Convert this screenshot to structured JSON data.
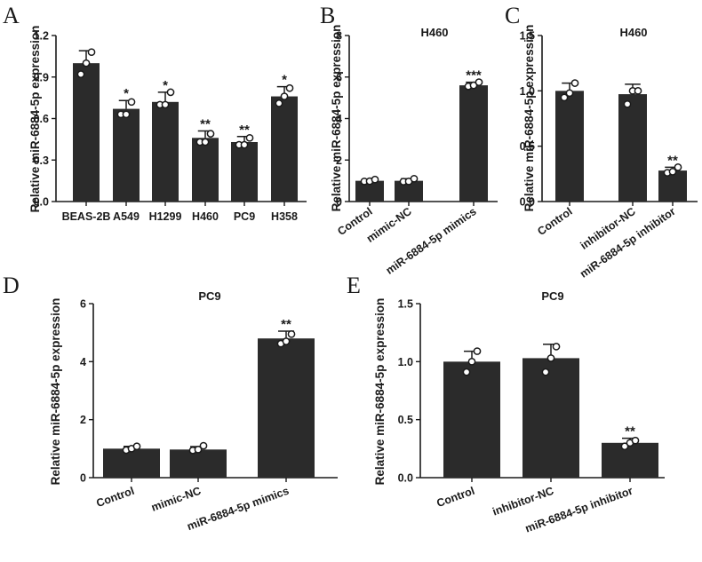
{
  "figure": {
    "ylabel": "Relative miR-6884-5p expression"
  },
  "colors": {
    "bar": "#2b2b2b",
    "axis": "#1a1a1a",
    "point_fill": "#ffffff"
  },
  "chart_data": [
    {
      "panel": "A",
      "type": "bar",
      "title": "",
      "ylabel": "Relative miR-6884-5p expression",
      "ylim": [
        0,
        1.2
      ],
      "yticks": [
        "0.0",
        "0.3",
        "0.6",
        "0.9",
        "1.2"
      ],
      "categories": [
        "BEAS-2B",
        "A549",
        "H1299",
        "H460",
        "PC9",
        "H358"
      ],
      "values": [
        1.0,
        0.67,
        0.72,
        0.46,
        0.43,
        0.76
      ],
      "errors": [
        0.09,
        0.06,
        0.07,
        0.05,
        0.04,
        0.07
      ],
      "points": [
        [
          0.92,
          1.0,
          1.08
        ],
        [
          0.63,
          0.63,
          0.72
        ],
        [
          0.7,
          0.7,
          0.79
        ],
        [
          0.43,
          0.43,
          0.49
        ],
        [
          0.41,
          0.41,
          0.46
        ],
        [
          0.71,
          0.76,
          0.82
        ]
      ],
      "significance": [
        "",
        "*",
        "*",
        "**",
        "**",
        "*"
      ],
      "label_rotation": 0
    },
    {
      "panel": "B",
      "type": "bar",
      "title": "H460",
      "ylabel": "Relative miR-6884-5p expression",
      "ylim": [
        0,
        8
      ],
      "yticks": [
        "0",
        "2",
        "4",
        "6",
        "8"
      ],
      "categories": [
        "Control",
        "mimic-NC",
        "miR-6884-5p mimics"
      ],
      "values": [
        1.0,
        1.0,
        5.6
      ],
      "errors": [
        0.08,
        0.1,
        0.15
      ],
      "points": [
        [
          0.97,
          0.98,
          1.06
        ],
        [
          0.96,
          0.97,
          1.1
        ],
        [
          5.55,
          5.6,
          5.75
        ]
      ],
      "significance": [
        "",
        "",
        "***"
      ],
      "label_rotation": -35
    },
    {
      "panel": "C",
      "type": "bar",
      "title": "H460",
      "ylabel": "Relative miR-6884-5p expression",
      "ylim": [
        0,
        1.5
      ],
      "yticks": [
        "0.0",
        "0.5",
        "1.0",
        "1.5"
      ],
      "categories": [
        "Control",
        "inhibitor-NC",
        "miR-6884-5p inhibitor"
      ],
      "values": [
        1.0,
        0.97,
        0.28
      ],
      "errors": [
        0.07,
        0.09,
        0.03
      ],
      "points": [
        [
          0.94,
          0.98,
          1.07
        ],
        [
          0.88,
          1.0,
          1.0
        ],
        [
          0.26,
          0.27,
          0.31
        ]
      ],
      "significance": [
        "",
        "",
        "**"
      ],
      "label_rotation": -35
    },
    {
      "panel": "D",
      "type": "bar",
      "title": "PC9",
      "ylabel": "Relative miR-6884-5p expression",
      "ylim": [
        0,
        6
      ],
      "yticks": [
        "0",
        "2",
        "4",
        "6"
      ],
      "categories": [
        "Control",
        "mimic-NC",
        "miR-6884-5p mimics"
      ],
      "values": [
        1.0,
        0.97,
        4.8
      ],
      "errors": [
        0.08,
        0.1,
        0.25
      ],
      "points": [
        [
          0.95,
          1.0,
          1.08
        ],
        [
          0.94,
          0.97,
          1.1
        ],
        [
          4.62,
          4.7,
          4.95
        ]
      ],
      "significance": [
        "",
        "",
        "**"
      ],
      "label_rotation": -20
    },
    {
      "panel": "E",
      "type": "bar",
      "title": "PC9",
      "ylabel": "Relative miR-6884-5p expression",
      "ylim": [
        0,
        1.5
      ],
      "yticks": [
        "0.0",
        "0.5",
        "1.0",
        "1.5"
      ],
      "categories": [
        "Control",
        "inhibitor-NC",
        "miR-6884-5p inhibitor"
      ],
      "values": [
        1.0,
        1.03,
        0.3
      ],
      "errors": [
        0.09,
        0.12,
        0.04
      ],
      "points": [
        [
          0.91,
          1.0,
          1.09
        ],
        [
          0.91,
          1.03,
          1.13
        ],
        [
          0.27,
          0.3,
          0.32
        ]
      ],
      "significance": [
        "",
        "",
        "**"
      ],
      "label_rotation": -20
    }
  ]
}
